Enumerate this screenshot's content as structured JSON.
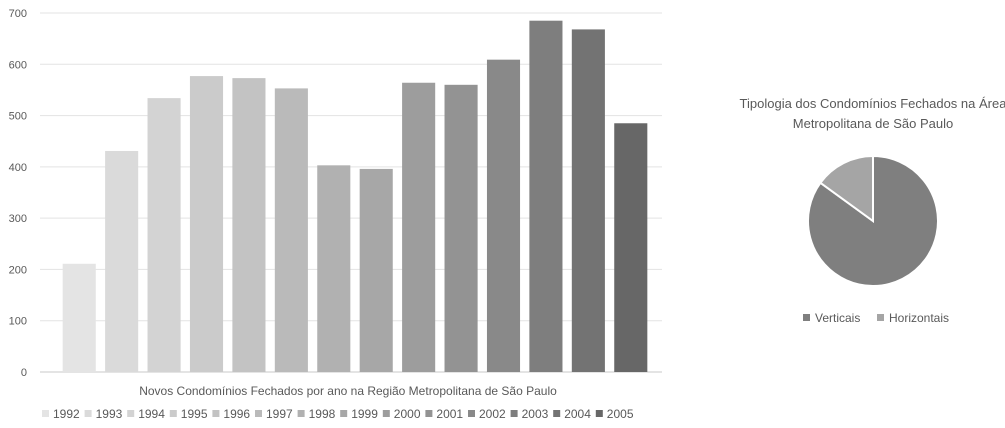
{
  "chart_data": [
    {
      "type": "bar",
      "title": "Novos Condomínios Fechados por ano na Região Metropolitana de São Paulo",
      "categories": [
        "1992",
        "1993",
        "1994",
        "1995",
        "1996",
        "1997",
        "1998",
        "1999",
        "2000",
        "2001",
        "2002",
        "2003",
        "2004",
        "2005"
      ],
      "values": [
        211,
        431,
        534,
        577,
        573,
        553,
        403,
        396,
        564,
        560,
        609,
        685,
        668,
        485
      ],
      "colors": [
        "#e4e4e4",
        "#dadada",
        "#d3d3d3",
        "#cbcbcb",
        "#c3c3c3",
        "#bababa",
        "#b1b1b1",
        "#a7a7a7",
        "#9d9d9d",
        "#939393",
        "#898989",
        "#7e7e7e",
        "#737373",
        "#676767"
      ],
      "ylim": [
        0,
        700
      ],
      "yticks": [
        0,
        100,
        200,
        300,
        400,
        500,
        600,
        700
      ],
      "xlabel": "",
      "ylabel": "",
      "grid": true,
      "legend": "bottom"
    },
    {
      "type": "pie",
      "title_lines": [
        "Tipologia  dos Condomínios Fechados na Área",
        "Metropolitana de São Paulo"
      ],
      "labels": [
        "Verticais",
        "Horizontais"
      ],
      "values": [
        85,
        15
      ],
      "colors": [
        "#7f7f7f",
        "#a5a5a5"
      ],
      "legend": "bottom"
    }
  ]
}
